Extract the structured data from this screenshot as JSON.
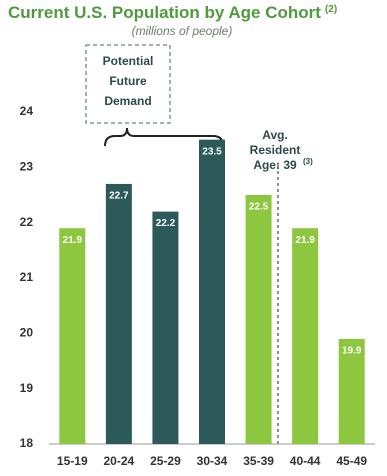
{
  "chart_data": {
    "type": "bar",
    "title": "Current U.S. Population by Age Cohort",
    "title_note": "(2)",
    "subtitle": "(millions of people)",
    "categories": [
      "15-19",
      "20-24",
      "25-29",
      "30-34",
      "35-39",
      "40-44",
      "45-49"
    ],
    "values": [
      21.9,
      22.7,
      22.2,
      23.5,
      22.5,
      21.9,
      19.9
    ],
    "colors": [
      "#8dc63f",
      "#2c5a5a",
      "#2c5a5a",
      "#2c5a5a",
      "#8dc63f",
      "#8dc63f",
      "#8dc63f"
    ],
    "ylim": [
      18,
      24
    ],
    "yticks": [
      18,
      19,
      20,
      21,
      22,
      23,
      24
    ],
    "demand_label": [
      "Potential",
      "Future",
      "Demand"
    ],
    "avg_label": [
      "Avg.",
      "Resident",
      "Age: 39"
    ],
    "avg_note": "(3)"
  }
}
